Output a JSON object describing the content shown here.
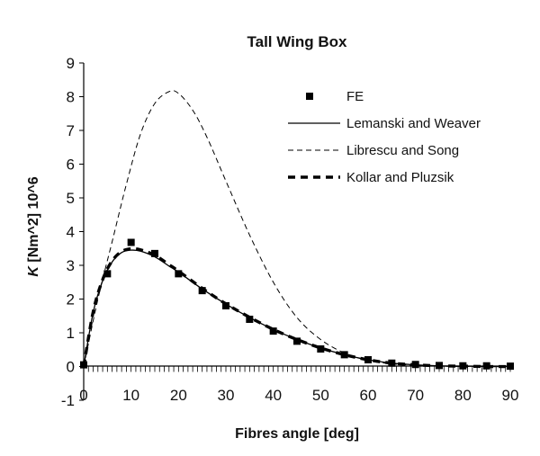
{
  "chart_data": {
    "type": "line",
    "title": "Tall Wing Box",
    "xlabel": "Fibres angle [deg]",
    "ylabel_italic": "K",
    "ylabel_rest": " [Nm^2] 10^6",
    "xlim": [
      0,
      90
    ],
    "ylim": [
      -1,
      9
    ],
    "xticks": [
      "0",
      "10",
      "20",
      "30",
      "40",
      "50",
      "60",
      "70",
      "80",
      "90"
    ],
    "yticks": [
      "-1",
      "0",
      "1",
      "2",
      "3",
      "4",
      "5",
      "6",
      "7",
      "8",
      "9"
    ],
    "grid": false,
    "legend_position": "top-right",
    "colors": {
      "series": "#000000"
    },
    "series": [
      {
        "name": "FE",
        "style": "square-markers",
        "x": [
          0,
          5,
          10,
          15,
          20,
          25,
          30,
          35,
          40,
          45,
          50,
          55,
          60,
          65,
          70,
          75,
          80,
          85,
          90
        ],
        "y": [
          0.05,
          2.75,
          3.68,
          3.35,
          2.75,
          2.25,
          1.8,
          1.4,
          1.05,
          0.75,
          0.52,
          0.35,
          0.2,
          0.1,
          0.06,
          0.03,
          0.02,
          0.02,
          0.01
        ]
      },
      {
        "name": "Lemanski and Weaver",
        "style": "solid",
        "x": [
          0,
          2,
          4,
          6,
          8,
          10,
          12,
          15,
          18,
          20,
          25,
          30,
          35,
          40,
          45,
          50,
          55,
          60,
          65,
          70,
          75,
          80,
          85,
          90
        ],
        "y": [
          0,
          1.6,
          2.55,
          3.1,
          3.38,
          3.45,
          3.42,
          3.25,
          2.98,
          2.8,
          2.3,
          1.85,
          1.45,
          1.1,
          0.8,
          0.55,
          0.35,
          0.2,
          0.1,
          0.05,
          0.02,
          0.01,
          0.0,
          0.0
        ]
      },
      {
        "name": "Librescu and Song",
        "style": "dashed",
        "x": [
          0,
          3,
          6,
          9,
          12,
          15,
          18,
          20,
          23,
          26,
          30,
          35,
          40,
          45,
          50,
          55,
          60,
          65,
          70,
          75,
          80,
          85,
          90
        ],
        "y": [
          0,
          2.0,
          3.7,
          5.4,
          6.9,
          7.8,
          8.15,
          8.1,
          7.6,
          6.8,
          5.5,
          3.9,
          2.5,
          1.45,
          0.8,
          0.4,
          0.18,
          0.08,
          0.03,
          0.01,
          0.0,
          0.0,
          0.0
        ]
      },
      {
        "name": "Kollar and Pluzsik",
        "style": "thick-dashed",
        "x": [
          0,
          2,
          4,
          6,
          8,
          10,
          12,
          15,
          18,
          20,
          25,
          30,
          35,
          40,
          45,
          50,
          55,
          60,
          65,
          70,
          75,
          80,
          85,
          90
        ],
        "y": [
          0,
          1.62,
          2.58,
          3.13,
          3.41,
          3.49,
          3.46,
          3.3,
          3.02,
          2.83,
          2.32,
          1.86,
          1.46,
          1.1,
          0.8,
          0.55,
          0.35,
          0.2,
          0.1,
          0.05,
          0.02,
          0.01,
          0.0,
          0.0
        ]
      }
    ]
  }
}
